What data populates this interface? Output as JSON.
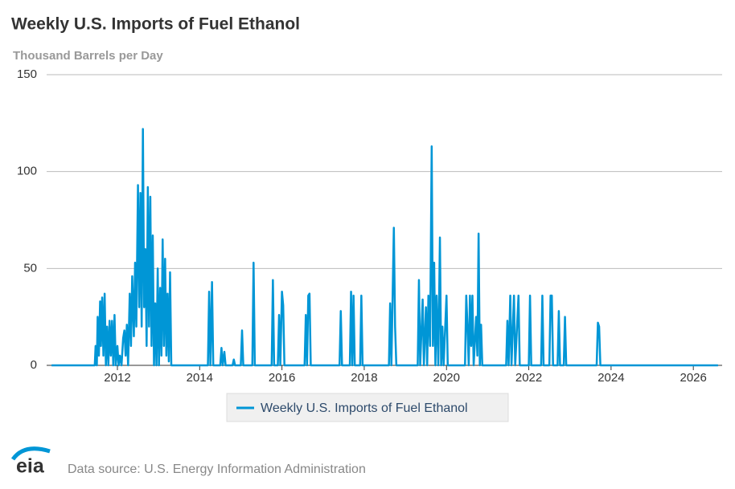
{
  "chart_data": {
    "type": "line",
    "title": "Weekly U.S. Imports of Fuel Ethanol",
    "y_axis_label": "Thousand Barrels per Day",
    "source": "Data source: U.S. Energy Information Administration",
    "logo": "eia",
    "xlim": [
      2010.28,
      2026.7
    ],
    "xticks": [
      2012,
      2014,
      2016,
      2018,
      2020,
      2022,
      2024,
      2026
    ],
    "ylim": [
      0,
      150
    ],
    "yticks": [
      0,
      50,
      100,
      150
    ],
    "grid": true,
    "legend": "bottom",
    "x": [
      2010.4,
      2011.45,
      2011.47,
      2011.5,
      2011.52,
      2011.55,
      2011.58,
      2011.6,
      2011.63,
      2011.66,
      2011.69,
      2011.72,
      2011.75,
      2011.78,
      2011.81,
      2011.84,
      2011.87,
      2011.9,
      2011.93,
      2011.96,
      2012.0,
      2012.03,
      2012.06,
      2012.1,
      2012.14,
      2012.17,
      2012.2,
      2012.23,
      2012.26,
      2012.3,
      2012.33,
      2012.36,
      2012.4,
      2012.43,
      2012.46,
      2012.5,
      2012.53,
      2012.56,
      2012.59,
      2012.62,
      2012.65,
      2012.68,
      2012.71,
      2012.74,
      2012.77,
      2012.8,
      2012.83,
      2012.86,
      2012.89,
      2012.92,
      2012.95,
      2012.98,
      2013.01,
      2013.04,
      2013.07,
      2013.1,
      2013.13,
      2013.16,
      2013.19,
      2013.22,
      2013.25,
      2013.28,
      2013.31,
      2014.2,
      2014.23,
      2014.26,
      2014.3,
      2014.33,
      2014.5,
      2014.53,
      2014.56,
      2014.6,
      2014.63,
      2014.8,
      2014.83,
      2014.86,
      2015.0,
      2015.03,
      2015.06,
      2015.28,
      2015.31,
      2015.34,
      2015.75,
      2015.78,
      2015.81,
      2015.9,
      2015.93,
      2015.96,
      2016.0,
      2016.03,
      2016.06,
      2016.55,
      2016.58,
      2016.61,
      2016.64,
      2016.67,
      2016.7,
      2017.4,
      2017.43,
      2017.46,
      2017.65,
      2017.68,
      2017.71,
      2017.74,
      2017.77,
      2017.9,
      2017.93,
      2017.96,
      2018.6,
      2018.63,
      2018.66,
      2018.72,
      2018.75,
      2018.78,
      2019.3,
      2019.33,
      2019.36,
      2019.42,
      2019.45,
      2019.5,
      2019.53,
      2019.56,
      2019.6,
      2019.64,
      2019.67,
      2019.7,
      2019.73,
      2019.76,
      2019.8,
      2019.84,
      2019.87,
      2019.9,
      2019.93,
      2020.0,
      2020.03,
      2020.45,
      2020.48,
      2020.51,
      2020.54,
      2020.57,
      2020.6,
      2020.63,
      2020.66,
      2020.72,
      2020.75,
      2020.78,
      2020.81,
      2020.84,
      2020.87,
      2021.45,
      2021.48,
      2021.51,
      2021.55,
      2021.58,
      2021.64,
      2021.67,
      2021.75,
      2021.78,
      2022.0,
      2022.03,
      2022.06,
      2022.3,
      2022.33,
      2022.36,
      2022.5,
      2022.53,
      2022.56,
      2022.59,
      2022.7,
      2022.73,
      2022.76,
      2022.85,
      2022.88,
      2022.91,
      2023.65,
      2023.68,
      2023.71,
      2023.74,
      2026.6
    ],
    "series": [
      {
        "name": "Weekly U.S. Imports of Fuel Ethanol",
        "color": "#0096d6",
        "values": [
          0,
          0,
          10,
          0,
          25,
          5,
          33,
          10,
          35,
          5,
          37,
          0,
          20,
          0,
          23,
          5,
          23,
          0,
          26,
          0,
          10,
          0,
          5,
          0,
          14,
          18,
          5,
          21,
          0,
          37,
          10,
          46,
          15,
          53,
          20,
          93,
          30,
          89,
          20,
          122,
          30,
          60,
          10,
          92,
          20,
          87,
          10,
          67,
          0,
          32,
          0,
          50,
          0,
          40,
          5,
          65,
          10,
          55,
          5,
          37,
          2,
          48,
          0,
          0,
          38,
          0,
          43,
          0,
          0,
          9,
          0,
          7,
          0,
          0,
          3,
          0,
          0,
          18,
          0,
          0,
          53,
          0,
          0,
          44,
          0,
          0,
          26,
          0,
          38,
          31,
          0,
          0,
          26,
          0,
          36,
          37,
          0,
          0,
          28,
          0,
          0,
          38,
          0,
          36,
          0,
          0,
          36,
          0,
          0,
          32,
          0,
          71,
          20,
          0,
          0,
          44,
          0,
          34,
          0,
          30,
          0,
          36,
          10,
          113,
          10,
          53,
          0,
          36,
          0,
          66,
          0,
          20,
          0,
          36,
          0,
          0,
          36,
          20,
          0,
          36,
          10,
          36,
          0,
          25,
          5,
          68,
          0,
          21,
          0,
          0,
          23,
          0,
          36,
          0,
          36,
          0,
          36,
          0,
          0,
          36,
          0,
          0,
          36,
          0,
          0,
          36,
          36,
          0,
          0,
          28,
          0,
          0,
          25,
          0,
          0,
          22,
          20,
          0,
          0
        ]
      }
    ]
  }
}
